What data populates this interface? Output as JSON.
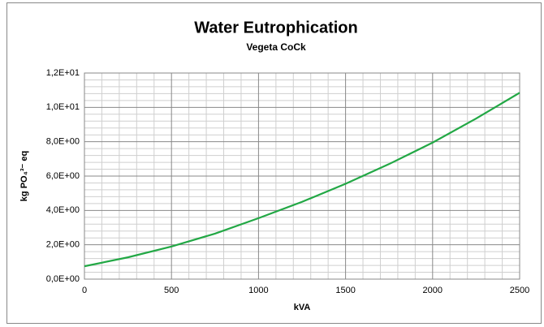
{
  "chart_data": {
    "type": "line",
    "title": "Water Eutrophication",
    "subtitle": "Vegeta CoCk",
    "x_label": "kVA",
    "y_label": "kg PO₄³⁻ eq",
    "x": [
      0,
      250,
      500,
      750,
      1000,
      1250,
      1500,
      1750,
      2000,
      2250,
      2500
    ],
    "series": [
      {
        "name": "Vegeta CoCk",
        "color": "#22a845",
        "values": [
          0.75,
          1.27,
          1.9,
          2.65,
          3.55,
          4.5,
          5.55,
          6.7,
          7.95,
          9.35,
          10.85
        ]
      }
    ],
    "xlim": [
      0,
      2500
    ],
    "xticks": [
      0,
      500,
      1000,
      1500,
      2000,
      2500
    ],
    "ylim": [
      0,
      12
    ],
    "yticks": [
      {
        "value": 0,
        "label": "0,0E+00"
      },
      {
        "value": 2,
        "label": "2,0E+00"
      },
      {
        "value": 4,
        "label": "4,0E+00"
      },
      {
        "value": 6,
        "label": "6,0E+00"
      },
      {
        "value": 8,
        "label": "8,0E+00"
      },
      {
        "value": 10,
        "label": "1,0E+01"
      },
      {
        "value": 12,
        "label": "1,2E+01"
      }
    ],
    "grid": true,
    "minor_grid": true,
    "legend": false
  }
}
